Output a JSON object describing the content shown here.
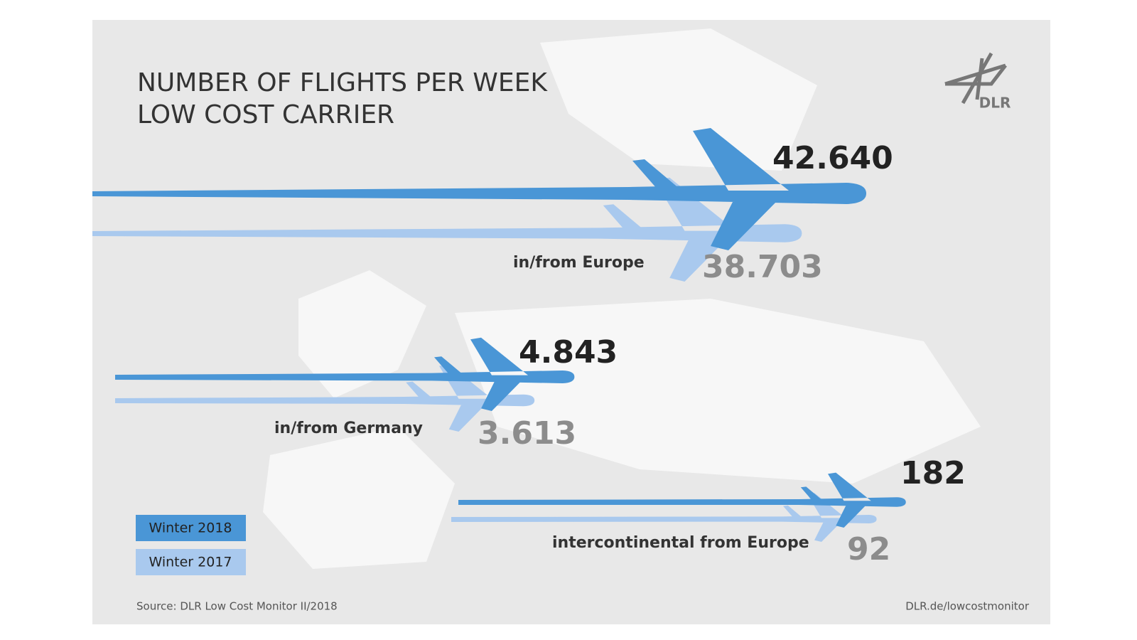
{
  "chart_data": {
    "type": "plane",
    "title": "NUMBER OF FLIGHTS PER WEEK",
    "subtitle": "LOW COST CARRIER",
    "categories": [
      "in/from Europe",
      "in/from Germany",
      "intercontinental from Europe"
    ],
    "series": [
      {
        "name": "Winter 2018",
        "color": "#4a96d6",
        "values": [
          42640,
          4843,
          182
        ],
        "value_labels": [
          "42.640",
          "4.843",
          "182"
        ]
      },
      {
        "name": "Winter 2017",
        "color": "#a9c9ee",
        "values": [
          38703,
          3613,
          92
        ],
        "value_labels": [
          "38.703",
          "3.613",
          "92"
        ]
      }
    ],
    "source": "Source: DLR Low Cost Monitor II/2018",
    "link": "DLR.de/lowcostmonitor",
    "logo": "DLR"
  }
}
